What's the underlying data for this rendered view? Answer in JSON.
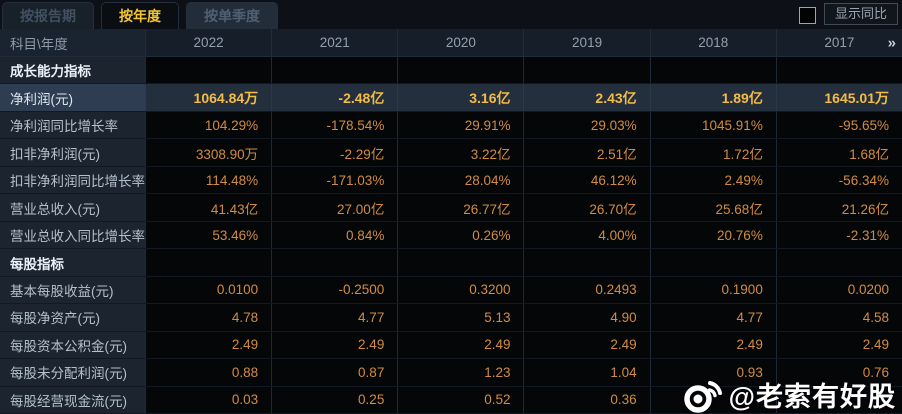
{
  "tabs": [
    {
      "label": "按报告期",
      "active": false
    },
    {
      "label": "按年度",
      "active": true
    },
    {
      "label": "按单季度",
      "active": false
    }
  ],
  "controls": {
    "show_yoy_label": "显示同比",
    "yoy_checkbox_checked": false,
    "more_years_icon": "»"
  },
  "table": {
    "corner_header": "科目\\年度",
    "year_headers": [
      "2022",
      "2021",
      "2020",
      "2019",
      "2018",
      "2017"
    ],
    "rows": [
      {
        "type": "section",
        "label": "成长能力指标",
        "values": [
          "",
          "",
          "",
          "",
          "",
          ""
        ]
      },
      {
        "type": "highlight",
        "label": "净利润(元)",
        "values": [
          "1064.84万",
          "-2.48亿",
          "3.16亿",
          "2.43亿",
          "1.89亿",
          "1645.01万"
        ]
      },
      {
        "type": "data",
        "label": "净利润同比增长率",
        "values": [
          "104.29%",
          "-178.54%",
          "29.91%",
          "29.03%",
          "1045.91%",
          "-95.65%"
        ]
      },
      {
        "type": "data",
        "label": "扣非净利润(元)",
        "values": [
          "3308.90万",
          "-2.29亿",
          "3.22亿",
          "2.51亿",
          "1.72亿",
          "1.68亿"
        ]
      },
      {
        "type": "data",
        "label": "扣非净利润同比增长率",
        "values": [
          "114.48%",
          "-171.03%",
          "28.04%",
          "46.12%",
          "2.49%",
          "-56.34%"
        ]
      },
      {
        "type": "data",
        "label": "营业总收入(元)",
        "values": [
          "41.43亿",
          "27.00亿",
          "26.77亿",
          "26.70亿",
          "25.68亿",
          "21.26亿"
        ]
      },
      {
        "type": "data",
        "label": "营业总收入同比增长率",
        "values": [
          "53.46%",
          "0.84%",
          "0.26%",
          "4.00%",
          "20.76%",
          "-2.31%"
        ]
      },
      {
        "type": "section",
        "label": "每股指标",
        "values": [
          "",
          "",
          "",
          "",
          "",
          ""
        ]
      },
      {
        "type": "data",
        "label": "基本每股收益(元)",
        "values": [
          "0.0100",
          "-0.2500",
          "0.3200",
          "0.2493",
          "0.1900",
          "0.0200"
        ]
      },
      {
        "type": "data",
        "label": "每股净资产(元)",
        "values": [
          "4.78",
          "4.77",
          "5.13",
          "4.90",
          "4.77",
          "4.58"
        ]
      },
      {
        "type": "data",
        "label": "每股资本公积金(元)",
        "values": [
          "2.49",
          "2.49",
          "2.49",
          "2.49",
          "2.49",
          "2.49"
        ]
      },
      {
        "type": "data",
        "label": "每股未分配利润(元)",
        "values": [
          "0.88",
          "0.87",
          "1.23",
          "1.04",
          "0.93",
          "0.76"
        ]
      },
      {
        "type": "data",
        "label": "每股经营现金流(元)",
        "values": [
          "0.03",
          "0.25",
          "0.52",
          "0.36",
          "",
          ""
        ]
      }
    ]
  },
  "watermark": {
    "handle": "@老索有好股",
    "icon": "weibo-icon"
  },
  "colors": {
    "accent_gold": "#f3c52f",
    "value_orange": "#d28c42",
    "highlight_value_gold": "#f4bb45",
    "highlight_row_bg": "#242f3e",
    "label_column_bg": "#1b242f",
    "value_cell_bg": "#050608",
    "header_text": "#92a0ae"
  }
}
